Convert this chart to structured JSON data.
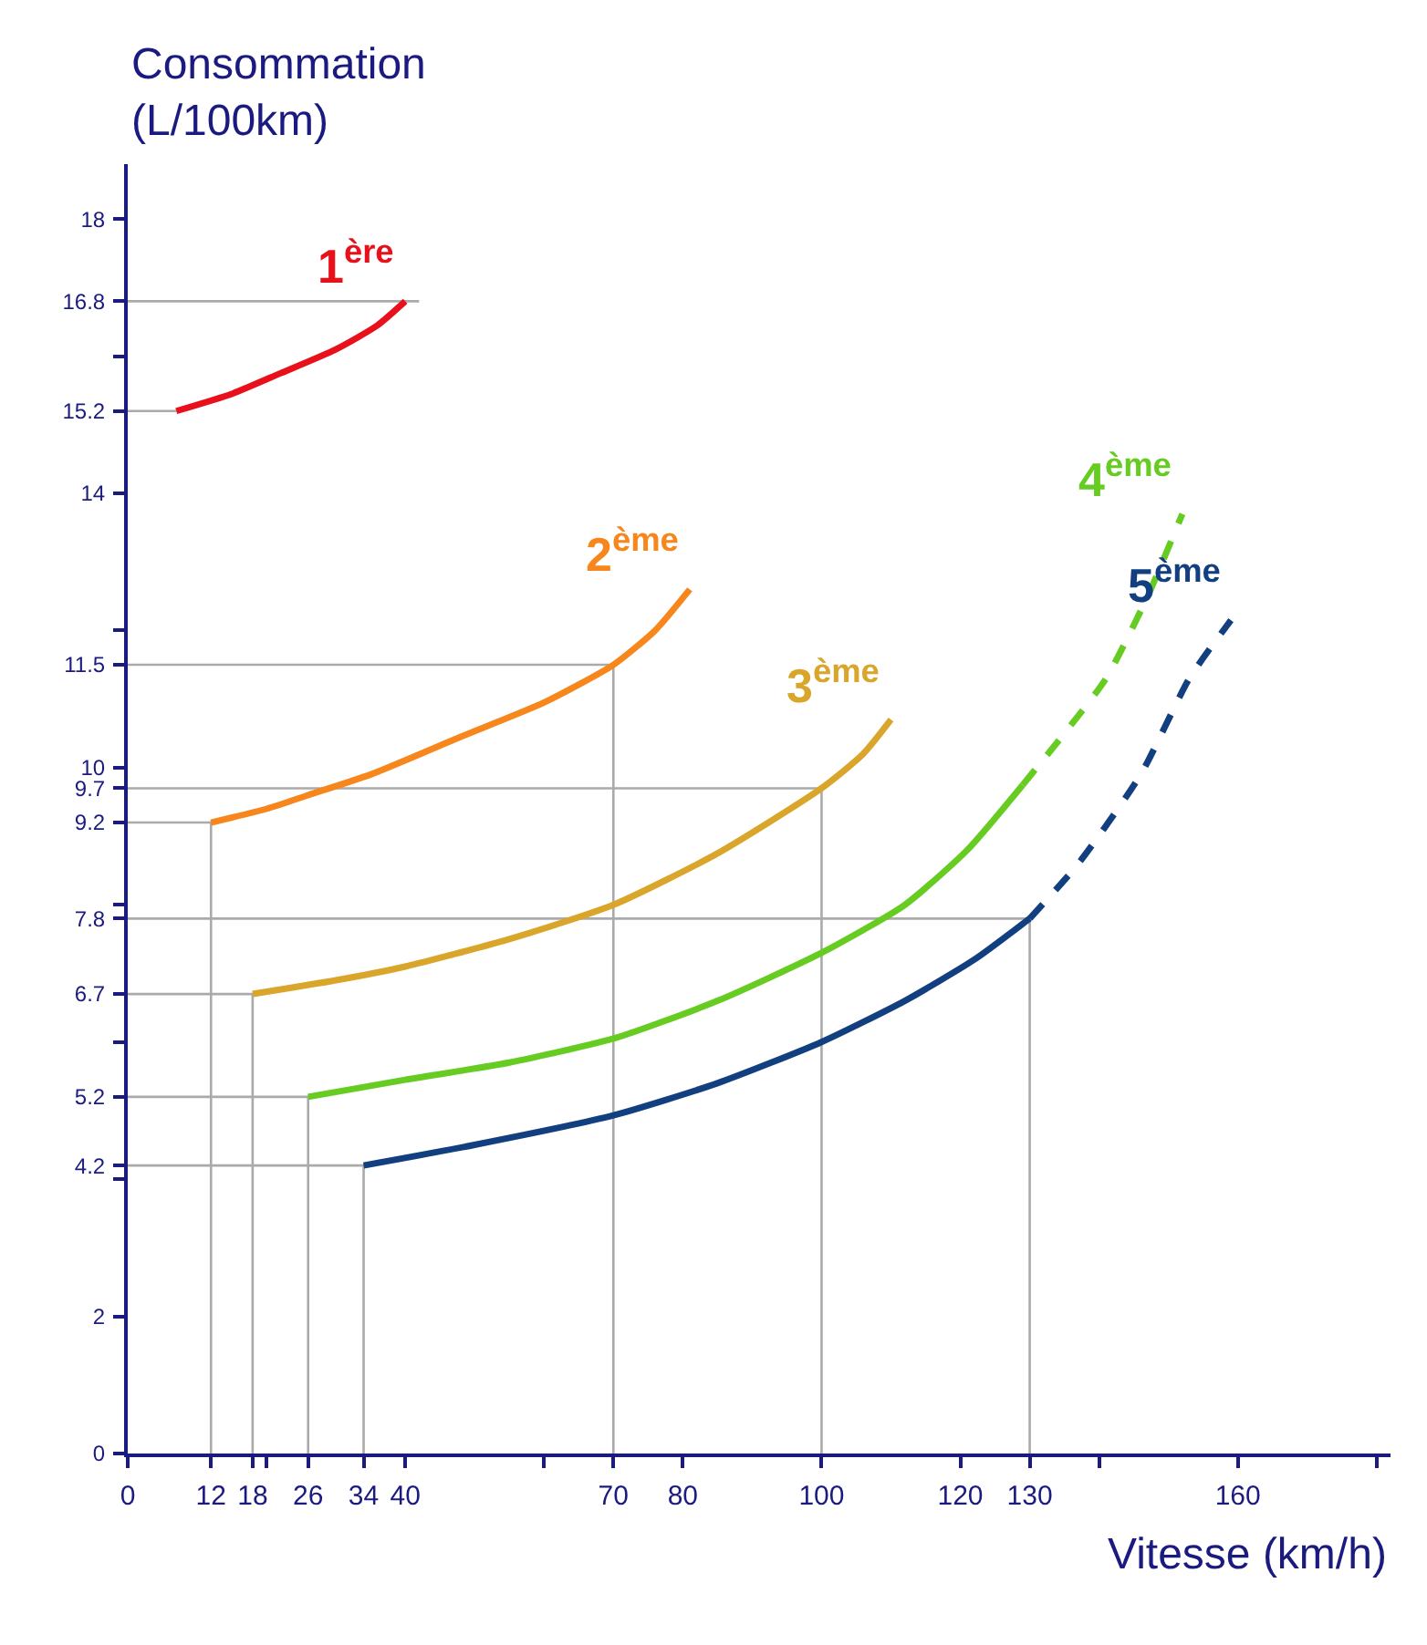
{
  "chart_data": {
    "type": "line",
    "xlabel": "Vitesse (km/h)",
    "ylabel": "Consommation\n(L/100km)",
    "xlim": [
      0,
      182
    ],
    "ylim": [
      0,
      18.8
    ],
    "xticks": [
      0,
      12,
      18,
      26,
      34,
      40,
      70,
      80,
      100,
      120,
      130,
      160,
      {
        "value": 20,
        "label": null
      },
      {
        "value": 60,
        "label": null
      },
      {
        "value": 140,
        "label": null
      },
      {
        "value": 180,
        "label": null
      }
    ],
    "yticks": [
      0,
      2,
      4.2,
      5.2,
      6.7,
      7.8,
      9.2,
      9.7,
      10,
      11.5,
      14,
      15.2,
      16.8,
      18,
      {
        "value": 4,
        "label": null
      },
      {
        "value": 6,
        "label": null
      },
      {
        "value": 8,
        "label": null
      },
      {
        "value": 12,
        "label": null
      },
      {
        "value": 16,
        "label": null
      }
    ],
    "legend": false,
    "marker": "none",
    "series": [
      {
        "x": [
          0,
          42
        ],
        "values": [
          16.8,
          16.8
        ],
        "color": "#aaaaaa",
        "line_style": "solid"
      },
      {
        "x": [
          0,
          7
        ],
        "values": [
          15.2,
          15.2
        ],
        "color": "#aaaaaa",
        "line_style": "solid"
      },
      {
        "x": [
          0,
          12,
          12
        ],
        "values": [
          9.2,
          9.2,
          0
        ],
        "color": "#aaaaaa",
        "line_style": "solid"
      },
      {
        "x": [
          0,
          70,
          70
        ],
        "values": [
          11.5,
          11.5,
          0
        ],
        "color": "#aaaaaa",
        "line_style": "solid"
      },
      {
        "x": [
          0,
          18,
          18
        ],
        "values": [
          6.7,
          6.7,
          0
        ],
        "color": "#aaaaaa",
        "line_style": "solid"
      },
      {
        "x": [
          0,
          100,
          100
        ],
        "values": [
          9.7,
          9.7,
          0
        ],
        "color": "#aaaaaa",
        "line_style": "solid"
      },
      {
        "x": [
          0,
          26,
          26
        ],
        "values": [
          5.2,
          5.2,
          0
        ],
        "color": "#aaaaaa",
        "line_style": "solid"
      },
      {
        "x": [
          0,
          34,
          34
        ],
        "values": [
          4.2,
          4.2,
          0
        ],
        "color": "#aaaaaa",
        "line_style": "solid"
      },
      {
        "x": [
          0,
          130,
          130
        ],
        "values": [
          7.8,
          7.8,
          0
        ],
        "color": "#aaaaaa",
        "line_style": "solid"
      },
      {
        "name": "1$^{ère}$",
        "color": "#e8101a",
        "line_style": "solid",
        "x": [
          7,
          15,
          22,
          30,
          36,
          40
        ],
        "values": [
          15.2,
          15.45,
          15.75,
          16.1,
          16.45,
          16.8
        ]
      },
      {
        "name": "2$^{ème}$",
        "color": "#f7861c",
        "line_style": "solid",
        "x": [
          12,
          20,
          26,
          35,
          48,
          60,
          70,
          76,
          81
        ],
        "values": [
          9.2,
          9.4,
          9.6,
          9.9,
          10.45,
          10.95,
          11.5,
          12.0,
          12.6
        ]
      },
      {
        "name": "3$^{ème}$",
        "color": "#d9a52a",
        "line_style": "solid",
        "x": [
          18,
          30,
          40,
          55,
          70,
          85,
          100,
          106,
          110
        ],
        "values": [
          6.7,
          6.9,
          7.1,
          7.5,
          8.0,
          8.75,
          9.7,
          10.2,
          10.7
        ]
      },
      {
        "name": "4$^{ème}$",
        "color": "#66cc22",
        "line_style": "solid",
        "x": [
          26,
          40,
          55,
          70,
          85,
          100,
          112,
          121,
          129
        ],
        "values": [
          5.2,
          5.45,
          5.7,
          6.05,
          6.6,
          7.3,
          8.0,
          8.8,
          9.75
        ]
      },
      {
        "color": "#66cc22",
        "line_style": "dashed",
        "x": [
          129,
          135,
          141,
          147,
          152
        ],
        "values": [
          9.75,
          10.5,
          11.3,
          12.5,
          13.7
        ]
      },
      {
        "name": "5$^{ème}$",
        "color": "#123f80",
        "line_style": "solid",
        "x": [
          34,
          50,
          70,
          85,
          100,
          112,
          122,
          130
        ],
        "values": [
          4.2,
          4.5,
          4.93,
          5.4,
          6.0,
          6.6,
          7.2,
          7.8
        ]
      },
      {
        "color": "#123f80",
        "line_style": "dashed",
        "x": [
          130,
          137,
          146,
          153,
          159
        ],
        "values": [
          7.8,
          8.6,
          9.9,
          11.3,
          12.15
        ]
      }
    ]
  }
}
